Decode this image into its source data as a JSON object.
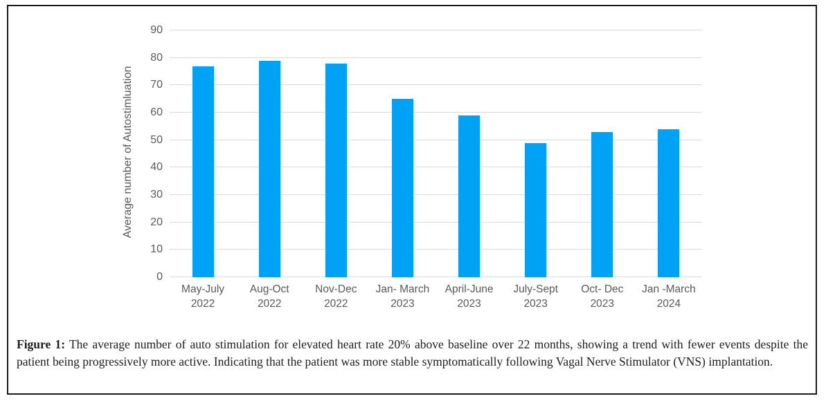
{
  "chart_data": {
    "type": "bar",
    "title": "",
    "xlabel": "",
    "ylabel": "Average number of Autostimluation",
    "categories": [
      "May-July\n2022",
      "Aug-Oct\n2022",
      "Nov-Dec\n2022",
      "Jan- March\n2023",
      "April-June\n2023",
      "July-Sept\n2023",
      "Oct- Dec\n2023",
      "Jan -March\n2024"
    ],
    "values": [
      77,
      79,
      78,
      65,
      59,
      49,
      53,
      54
    ],
    "ylim": [
      0,
      90
    ],
    "ytick_step": 10,
    "grid": "horizontal",
    "legend": "none",
    "bar_color": "#00a2f5",
    "gridline_color": "#d9d9d9",
    "axis_text_color": "#595959"
  },
  "caption": {
    "label": "Figure 1:",
    "text": " The average number of auto stimulation for elevated heart rate 20% above baseline over 22 months, showing a trend with fewer events despite the patient being progressively more active. Indicating that the patient was more stable symptomatically following Vagal Nerve Stimulator (VNS) implantation."
  }
}
